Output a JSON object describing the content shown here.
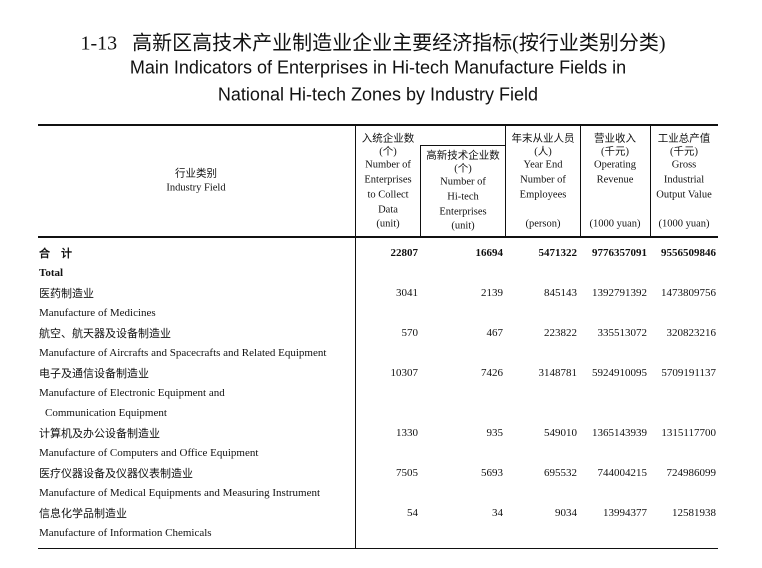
{
  "title": {
    "number": "1-13",
    "cn": "高新区高技术产业制造业企业主要经济指标(按行业类别分类)",
    "en": [
      "Main Indicators of Enterprises in Hi-tech Manufacture Fields in",
      "National Hi-tech Zones by Industry Field"
    ]
  },
  "table": {
    "columns": [
      [
        "行业类别",
        "Industry Field"
      ],
      [
        "入统企业数",
        "(个)",
        "Number of",
        "Enterprises",
        "to Collect",
        "Data",
        "(unit)"
      ],
      [
        "高新技术企业数",
        "(个)",
        "Number of",
        "Hi-tech",
        "Enterprises",
        "(unit)"
      ],
      [
        "年末从业人员",
        "(人)",
        "Year End",
        "Number of",
        "Employees",
        "(person)"
      ],
      [
        "营业收入",
        "(千元)",
        "Operating",
        "Revenue",
        "(1000 yuan)"
      ],
      [
        "工业总产值",
        "(千元)",
        "Gross",
        "Industrial",
        "Output Value",
        "(1000 yuan)"
      ]
    ],
    "rows": [
      {
        "cn": "合　计",
        "en": [
          "Total"
        ],
        "values": [
          22807,
          16694,
          5471322,
          9776357091,
          9556509846
        ]
      },
      {
        "cn": "医药制造业",
        "en": [
          "Manufacture of Medicines"
        ],
        "values": [
          3041,
          2139,
          845143,
          1392791392,
          1473809756
        ]
      },
      {
        "cn": "航空、航天器及设备制造业",
        "en": [
          "Manufacture of Aircrafts and Spacecrafts  and Related Equipment"
        ],
        "values": [
          570,
          467,
          223822,
          335513072,
          320823216
        ]
      },
      {
        "cn": "电子及通信设备制造业",
        "en": [
          "Manufacture of Electronic Equipment and",
          "Communication Equipment"
        ],
        "values": [
          10307,
          7426,
          3148781,
          5924910095,
          5709191137
        ]
      },
      {
        "cn": "计算机及办公设备制造业",
        "en": [
          "Manufacture of Computers and Office Equipment"
        ],
        "values": [
          1330,
          935,
          549010,
          1365143939,
          1315117700
        ]
      },
      {
        "cn": "医疗仪器设备及仪器仪表制造业",
        "en": [
          "Manufacture of Medical Equipments and Measuring Instrument"
        ],
        "values": [
          7505,
          5693,
          695532,
          744004215,
          724986099
        ]
      },
      {
        "cn": "信息化学品制造业",
        "en": [
          "Manufacture of Information Chemicals"
        ],
        "values": [
          54,
          34,
          9034,
          13994377,
          12581938
        ]
      }
    ]
  }
}
